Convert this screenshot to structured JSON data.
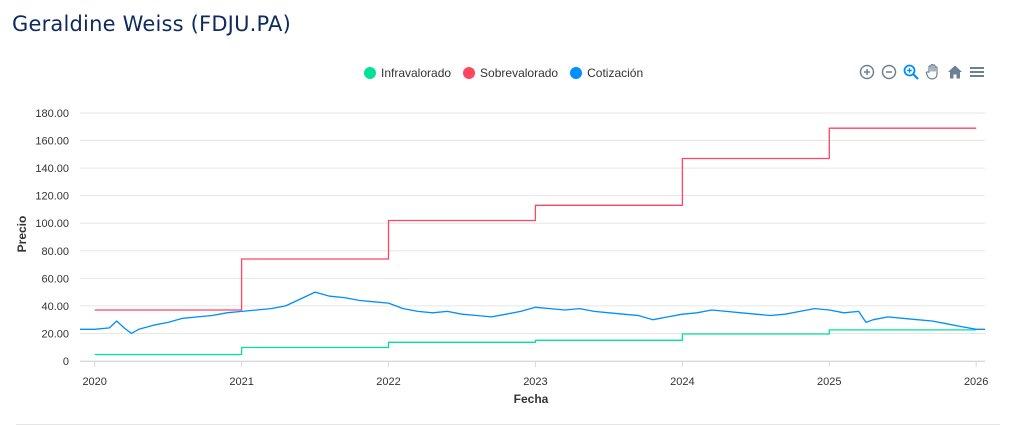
{
  "header": {
    "title": "Geraldine Weiss (FDJU.PA)"
  },
  "toolbar": {
    "tools": [
      {
        "name": "zoom-in-icon",
        "color": "#6e8192"
      },
      {
        "name": "zoom-out-icon",
        "color": "#6e8192"
      },
      {
        "name": "zoom-selection-icon",
        "color": "#008ffb"
      },
      {
        "name": "pan-icon",
        "color": "#6e8192"
      },
      {
        "name": "home-icon",
        "color": "#6e8192"
      },
      {
        "name": "menu-icon",
        "color": "#6e8192"
      }
    ]
  },
  "chart_data": {
    "type": "line",
    "xlabel": "Fecha",
    "ylabel": "Precio",
    "xlim": [
      2019.9,
      2026.06
    ],
    "ylim": [
      0,
      180
    ],
    "yticks": [
      0,
      20,
      40,
      60,
      80,
      100,
      120,
      140,
      160,
      180
    ],
    "ytick_labels": [
      "0",
      "20.00",
      "40.00",
      "60.00",
      "80.00",
      "100.00",
      "120.00",
      "140.00",
      "160.00",
      "180.00"
    ],
    "xticks": [
      2020,
      2021,
      2022,
      2023,
      2024,
      2025,
      2026
    ],
    "xtick_labels": [
      "2020",
      "2021",
      "2022",
      "2023",
      "2024",
      "2025",
      "2026"
    ],
    "grid": true,
    "legend_position": "top-center",
    "series": [
      {
        "name": "Infravalorado",
        "color": "#00e396",
        "step": true,
        "points": [
          [
            2020.0,
            4.7
          ],
          [
            2021.0,
            9.8
          ],
          [
            2022.0,
            13.6
          ],
          [
            2023.0,
            15.0
          ],
          [
            2024.0,
            19.6
          ],
          [
            2025.0,
            22.6
          ],
          [
            2026.0,
            22.6
          ]
        ]
      },
      {
        "name": "Sobrevalorado",
        "color": "#ff4560",
        "step": true,
        "points": [
          [
            2020.0,
            37.0
          ],
          [
            2021.0,
            74.0
          ],
          [
            2022.0,
            102.0
          ],
          [
            2023.0,
            113.0
          ],
          [
            2024.0,
            147.0
          ],
          [
            2025.0,
            169.0
          ],
          [
            2026.0,
            169.0
          ]
        ]
      },
      {
        "name": "Cotización",
        "color": "#008ffb",
        "step": false,
        "points": [
          [
            2019.9,
            23.0
          ],
          [
            2020.0,
            23.0
          ],
          [
            2020.1,
            24.0
          ],
          [
            2020.15,
            29.0
          ],
          [
            2020.2,
            24.0
          ],
          [
            2020.25,
            20.0
          ],
          [
            2020.3,
            23.0
          ],
          [
            2020.4,
            26.0
          ],
          [
            2020.5,
            28.0
          ],
          [
            2020.6,
            31.0
          ],
          [
            2020.7,
            32.0
          ],
          [
            2020.8,
            33.0
          ],
          [
            2020.9,
            35.0
          ],
          [
            2021.0,
            36.0
          ],
          [
            2021.1,
            37.0
          ],
          [
            2021.2,
            38.0
          ],
          [
            2021.3,
            40.0
          ],
          [
            2021.4,
            45.0
          ],
          [
            2021.5,
            50.0
          ],
          [
            2021.6,
            47.0
          ],
          [
            2021.7,
            46.0
          ],
          [
            2021.8,
            44.0
          ],
          [
            2021.9,
            43.0
          ],
          [
            2022.0,
            42.0
          ],
          [
            2022.1,
            38.0
          ],
          [
            2022.2,
            36.0
          ],
          [
            2022.3,
            35.0
          ],
          [
            2022.4,
            36.0
          ],
          [
            2022.5,
            34.0
          ],
          [
            2022.6,
            33.0
          ],
          [
            2022.7,
            32.0
          ],
          [
            2022.8,
            34.0
          ],
          [
            2022.9,
            36.0
          ],
          [
            2023.0,
            39.0
          ],
          [
            2023.1,
            38.0
          ],
          [
            2023.2,
            37.0
          ],
          [
            2023.3,
            38.0
          ],
          [
            2023.4,
            36.0
          ],
          [
            2023.5,
            35.0
          ],
          [
            2023.6,
            34.0
          ],
          [
            2023.7,
            33.0
          ],
          [
            2023.8,
            30.0
          ],
          [
            2023.9,
            32.0
          ],
          [
            2024.0,
            34.0
          ],
          [
            2024.1,
            35.0
          ],
          [
            2024.2,
            37.0
          ],
          [
            2024.3,
            36.0
          ],
          [
            2024.4,
            35.0
          ],
          [
            2024.5,
            34.0
          ],
          [
            2024.6,
            33.0
          ],
          [
            2024.7,
            34.0
          ],
          [
            2024.8,
            36.0
          ],
          [
            2024.9,
            38.0
          ],
          [
            2025.0,
            37.0
          ],
          [
            2025.1,
            35.0
          ],
          [
            2025.2,
            36.0
          ],
          [
            2025.25,
            28.0
          ],
          [
            2025.3,
            30.0
          ],
          [
            2025.4,
            32.0
          ],
          [
            2025.5,
            31.0
          ],
          [
            2025.6,
            30.0
          ],
          [
            2025.7,
            29.0
          ],
          [
            2025.8,
            27.0
          ],
          [
            2025.9,
            25.0
          ],
          [
            2026.0,
            23.0
          ],
          [
            2026.06,
            23.0
          ]
        ]
      }
    ]
  }
}
